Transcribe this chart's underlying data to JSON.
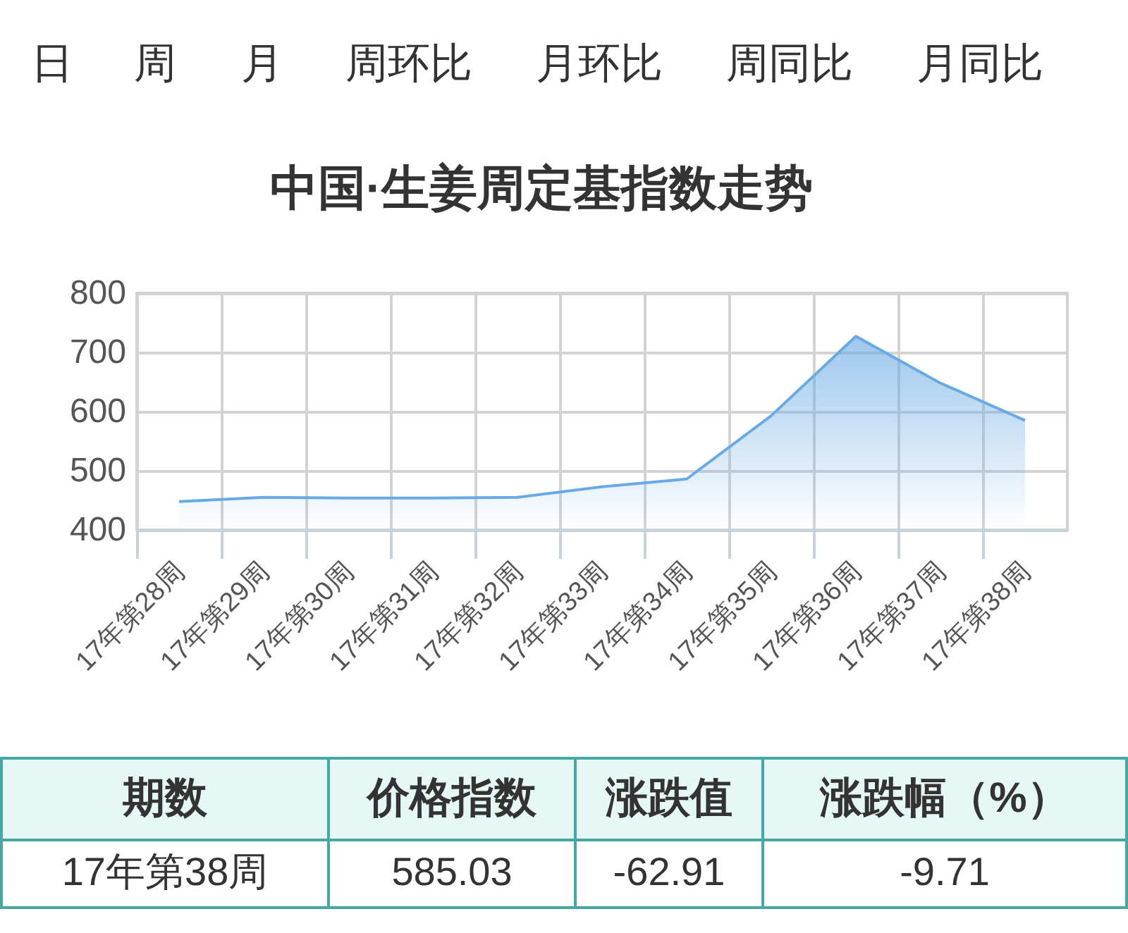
{
  "chart_data": {
    "type": "area",
    "title": "中国·生姜周定基指数走势",
    "categories": [
      "17年第28周",
      "17年第29周",
      "17年第30周",
      "17年第31周",
      "17年第32周",
      "17年第33周",
      "17年第34周",
      "17年第35周",
      "17年第36周",
      "17年第37周",
      "17年第38周"
    ],
    "series": [
      {
        "color": "#6aaae4",
        "values": [
          448,
          455,
          454,
          454,
          455,
          473,
          486,
          593,
          727,
          648,
          585
        ]
      }
    ],
    "ylim": [
      400,
      800
    ],
    "yticks": [
      400,
      500,
      600,
      700,
      800
    ],
    "grid": true,
    "annotations": [
      "日",
      "周",
      "月",
      "周环比",
      "月环比",
      "周同比",
      "月同比",
      "期数",
      "价格指数",
      "涨跌值",
      "涨跌幅（%）",
      "17年第38周",
      "585.03",
      "-62.91",
      "-9.71"
    ]
  }
}
